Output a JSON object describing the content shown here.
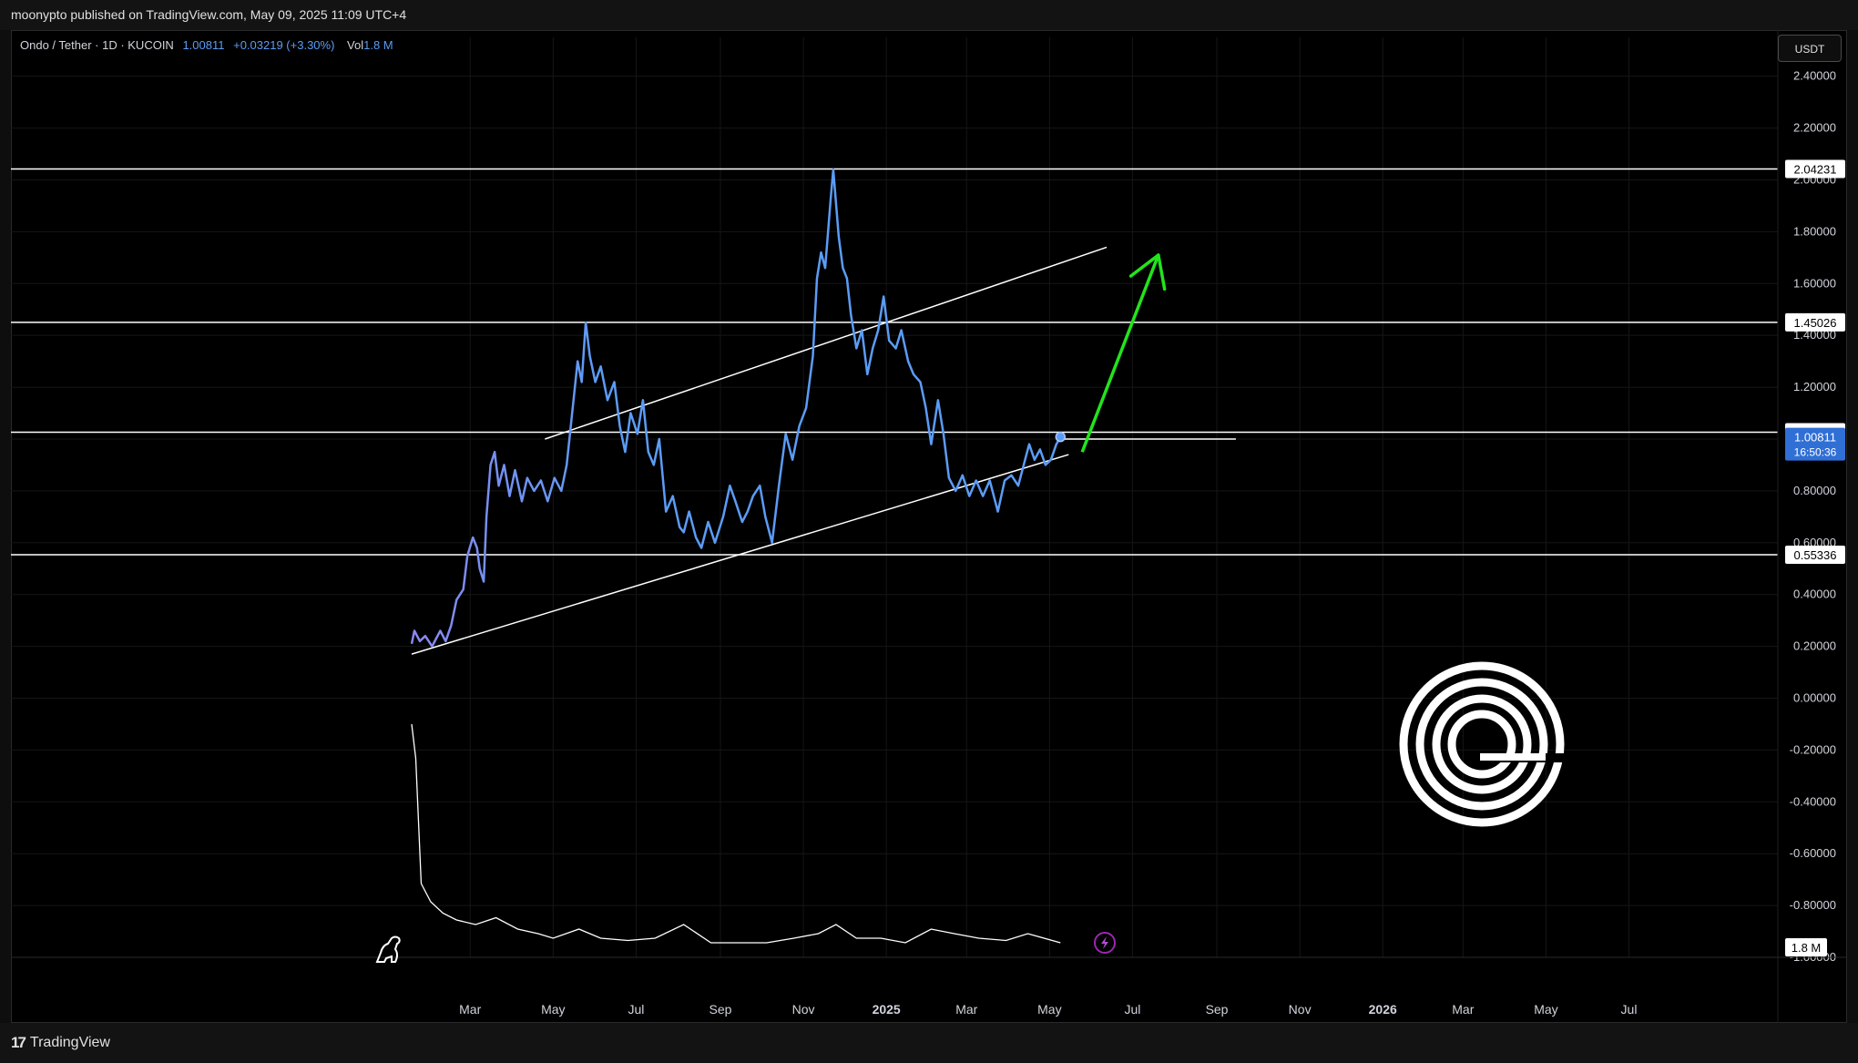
{
  "header": {
    "published": "moonypto published on TradingView.com, May 09, 2025 11:09 UTC+4"
  },
  "legend": {
    "symbol": "Ondo / Tether · 1D · KUCOIN",
    "price": "1.00811",
    "change": "+0.03219 (+3.30%)",
    "vol_label": "Vol",
    "vol_value": "1.8 M"
  },
  "currency_button": "USDT",
  "footer": {
    "brand": "TradingView"
  },
  "colors": {
    "price_line": "#5b9cf6",
    "price_line_start": "#8a87f0",
    "arrow": "#22e41b",
    "lines": "#ffffff",
    "current_price_tag": "#2f6fd6"
  },
  "icons": [
    "dinosaur-icon",
    "lightning-icon",
    "tradingview-logo-icon",
    "ondo-logo-icon"
  ],
  "chart_data": {
    "type": "line",
    "x_axis": {
      "start": "2024-01-18",
      "end": "2026-09-15",
      "tick_labels": [
        {
          "date": "2024-03-01",
          "label": "Mar"
        },
        {
          "date": "2024-05-01",
          "label": "May"
        },
        {
          "date": "2024-07-01",
          "label": "Jul"
        },
        {
          "date": "2024-09-01",
          "label": "Sep"
        },
        {
          "date": "2024-11-01",
          "label": "Nov"
        },
        {
          "date": "2025-01-01",
          "label": "2025"
        },
        {
          "date": "2025-03-01",
          "label": "Mar"
        },
        {
          "date": "2025-05-01",
          "label": "May"
        },
        {
          "date": "2025-07-01",
          "label": "Jul"
        },
        {
          "date": "2025-09-01",
          "label": "Sep"
        },
        {
          "date": "2025-11-01",
          "label": "Nov"
        },
        {
          "date": "2026-01-01",
          "label": "2026"
        },
        {
          "date": "2026-03-01",
          "label": "Mar"
        },
        {
          "date": "2026-05-01",
          "label": "May"
        },
        {
          "date": "2026-07-01",
          "label": "Jul"
        }
      ]
    },
    "y_axis": {
      "range": [
        -1.0,
        2.55
      ],
      "ticks": [
        "2.40000",
        "2.20000",
        "2.00000",
        "1.80000",
        "1.60000",
        "1.40000",
        "1.20000",
        "1.00000",
        "0.80000",
        "0.60000",
        "0.40000",
        "0.20000",
        "0.00000",
        "-0.20000",
        "-0.40000",
        "-0.60000",
        "-0.80000",
        "-1.00000"
      ]
    },
    "price_series": [
      [
        "2024-01-18",
        0.21
      ],
      [
        "2024-01-20",
        0.26
      ],
      [
        "2024-01-24",
        0.22
      ],
      [
        "2024-01-28",
        0.24
      ],
      [
        "2024-02-02",
        0.2
      ],
      [
        "2024-02-08",
        0.26
      ],
      [
        "2024-02-12",
        0.22
      ],
      [
        "2024-02-16",
        0.28
      ],
      [
        "2024-02-20",
        0.38
      ],
      [
        "2024-02-25",
        0.42
      ],
      [
        "2024-02-28",
        0.55
      ],
      [
        "2024-03-03",
        0.62
      ],
      [
        "2024-03-06",
        0.58
      ],
      [
        "2024-03-08",
        0.5
      ],
      [
        "2024-03-11",
        0.45
      ],
      [
        "2024-03-13",
        0.7
      ],
      [
        "2024-03-16",
        0.9
      ],
      [
        "2024-03-19",
        0.95
      ],
      [
        "2024-03-22",
        0.82
      ],
      [
        "2024-03-26",
        0.9
      ],
      [
        "2024-03-30",
        0.78
      ],
      [
        "2024-04-03",
        0.88
      ],
      [
        "2024-04-08",
        0.76
      ],
      [
        "2024-04-12",
        0.85
      ],
      [
        "2024-04-17",
        0.8
      ],
      [
        "2024-04-22",
        0.84
      ],
      [
        "2024-04-27",
        0.76
      ],
      [
        "2024-05-02",
        0.85
      ],
      [
        "2024-05-07",
        0.8
      ],
      [
        "2024-05-11",
        0.9
      ],
      [
        "2024-05-15",
        1.1
      ],
      [
        "2024-05-19",
        1.3
      ],
      [
        "2024-05-22",
        1.22
      ],
      [
        "2024-05-25",
        1.45
      ],
      [
        "2024-05-28",
        1.32
      ],
      [
        "2024-06-01",
        1.22
      ],
      [
        "2024-06-05",
        1.28
      ],
      [
        "2024-06-10",
        1.15
      ],
      [
        "2024-06-15",
        1.22
      ],
      [
        "2024-06-19",
        1.05
      ],
      [
        "2024-06-23",
        0.95
      ],
      [
        "2024-06-27",
        1.1
      ],
      [
        "2024-07-02",
        1.02
      ],
      [
        "2024-07-06",
        1.15
      ],
      [
        "2024-07-10",
        0.95
      ],
      [
        "2024-07-14",
        0.9
      ],
      [
        "2024-07-18",
        1.0
      ],
      [
        "2024-07-23",
        0.72
      ],
      [
        "2024-07-28",
        0.78
      ],
      [
        "2024-08-02",
        0.66
      ],
      [
        "2024-08-05",
        0.64
      ],
      [
        "2024-08-09",
        0.72
      ],
      [
        "2024-08-14",
        0.62
      ],
      [
        "2024-08-18",
        0.58
      ],
      [
        "2024-08-23",
        0.68
      ],
      [
        "2024-08-28",
        0.6
      ],
      [
        "2024-09-03",
        0.7
      ],
      [
        "2024-09-08",
        0.82
      ],
      [
        "2024-09-12",
        0.76
      ],
      [
        "2024-09-17",
        0.68
      ],
      [
        "2024-09-21",
        0.72
      ],
      [
        "2024-09-25",
        0.78
      ],
      [
        "2024-09-30",
        0.82
      ],
      [
        "2024-10-04",
        0.7
      ],
      [
        "2024-10-09",
        0.6
      ],
      [
        "2024-10-14",
        0.82
      ],
      [
        "2024-10-19",
        1.02
      ],
      [
        "2024-10-24",
        0.92
      ],
      [
        "2024-10-29",
        1.05
      ],
      [
        "2024-11-03",
        1.12
      ],
      [
        "2024-11-08",
        1.32
      ],
      [
        "2024-11-11",
        1.62
      ],
      [
        "2024-11-14",
        1.72
      ],
      [
        "2024-11-17",
        1.66
      ],
      [
        "2024-11-21",
        1.92
      ],
      [
        "2024-11-23",
        2.04
      ],
      [
        "2024-11-27",
        1.78
      ],
      [
        "2024-11-30",
        1.66
      ],
      [
        "2024-12-03",
        1.62
      ],
      [
        "2024-12-06",
        1.48
      ],
      [
        "2024-12-10",
        1.35
      ],
      [
        "2024-12-14",
        1.42
      ],
      [
        "2024-12-18",
        1.25
      ],
      [
        "2024-12-22",
        1.35
      ],
      [
        "2024-12-26",
        1.42
      ],
      [
        "2024-12-30",
        1.55
      ],
      [
        "2025-01-03",
        1.38
      ],
      [
        "2025-01-08",
        1.35
      ],
      [
        "2025-01-12",
        1.42
      ],
      [
        "2025-01-17",
        1.3
      ],
      [
        "2025-01-21",
        1.25
      ],
      [
        "2025-01-26",
        1.22
      ],
      [
        "2025-01-30",
        1.12
      ],
      [
        "2025-02-03",
        0.98
      ],
      [
        "2025-02-08",
        1.15
      ],
      [
        "2025-02-12",
        1.02
      ],
      [
        "2025-02-16",
        0.85
      ],
      [
        "2025-02-21",
        0.8
      ],
      [
        "2025-02-26",
        0.86
      ],
      [
        "2025-03-03",
        0.78
      ],
      [
        "2025-03-08",
        0.84
      ],
      [
        "2025-03-13",
        0.78
      ],
      [
        "2025-03-18",
        0.84
      ],
      [
        "2025-03-24",
        0.72
      ],
      [
        "2025-03-29",
        0.84
      ],
      [
        "2025-04-03",
        0.86
      ],
      [
        "2025-04-08",
        0.82
      ],
      [
        "2025-04-12",
        0.9
      ],
      [
        "2025-04-16",
        0.98
      ],
      [
        "2025-04-20",
        0.92
      ],
      [
        "2025-04-24",
        0.96
      ],
      [
        "2025-04-28",
        0.9
      ],
      [
        "2025-05-02",
        0.92
      ],
      [
        "2025-05-06",
        0.98
      ],
      [
        "2025-05-09",
        1.008
      ]
    ],
    "current_point": {
      "date": "2025-05-09",
      "value": 1.00811
    },
    "volume_series": [
      [
        "2024-01-18",
        1.0
      ],
      [
        "2024-01-21",
        0.85
      ],
      [
        "2024-01-25",
        0.3
      ],
      [
        "2024-02-01",
        0.22
      ],
      [
        "2024-02-10",
        0.17
      ],
      [
        "2024-02-20",
        0.14
      ],
      [
        "2024-03-05",
        0.12
      ],
      [
        "2024-03-20",
        0.15
      ],
      [
        "2024-04-05",
        0.1
      ],
      [
        "2024-04-20",
        0.08
      ],
      [
        "2024-05-01",
        0.06
      ],
      [
        "2024-05-20",
        0.1
      ],
      [
        "2024-06-05",
        0.06
      ],
      [
        "2024-06-25",
        0.05
      ],
      [
        "2024-07-15",
        0.06
      ],
      [
        "2024-08-05",
        0.12
      ],
      [
        "2024-08-25",
        0.04
      ],
      [
        "2024-09-15",
        0.04
      ],
      [
        "2024-10-05",
        0.04
      ],
      [
        "2024-10-25",
        0.06
      ],
      [
        "2024-11-12",
        0.08
      ],
      [
        "2024-11-25",
        0.12
      ],
      [
        "2024-12-10",
        0.06
      ],
      [
        "2024-12-28",
        0.06
      ],
      [
        "2025-01-15",
        0.04
      ],
      [
        "2025-02-03",
        0.1
      ],
      [
        "2025-02-20",
        0.08
      ],
      [
        "2025-03-10",
        0.06
      ],
      [
        "2025-03-30",
        0.05
      ],
      [
        "2025-04-15",
        0.08
      ],
      [
        "2025-05-09",
        0.04
      ]
    ],
    "horizontal_levels": [
      {
        "value": 2.04231,
        "label": "2.04231"
      },
      {
        "value": 1.45026,
        "label": "1.45026"
      },
      {
        "value": 1.02611,
        "label": "1.02611"
      },
      {
        "value": 0.55336,
        "label": "0.55336"
      }
    ],
    "channel_lines": [
      [
        [
          "2024-01-18",
          0.17
        ],
        [
          "2025-05-15",
          0.94
        ]
      ],
      [
        [
          "2024-04-25",
          1.0
        ],
        [
          "2025-06-12",
          1.74
        ]
      ],
      [
        [
          "2025-05-09",
          1.0
        ],
        [
          "2025-09-15",
          1.0
        ]
      ]
    ],
    "price_tag": {
      "value": 1.00811,
      "label": "1.00811",
      "countdown": "16:50:36"
    },
    "volume_tag": {
      "label": "1.8 M"
    },
    "arrow": {
      "from": [
        "2025-05-25",
        0.95
      ],
      "to": [
        "2025-07-20",
        1.71
      ]
    }
  }
}
